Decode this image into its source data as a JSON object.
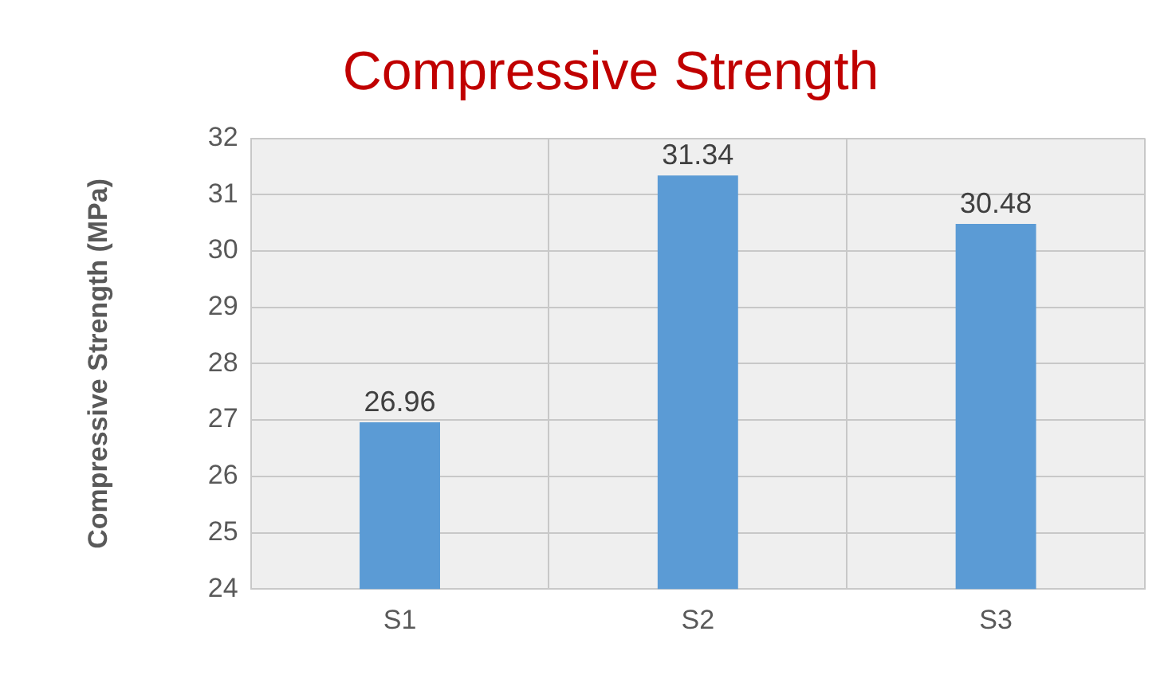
{
  "chart_data": {
    "type": "bar",
    "title": "Compressive Strength",
    "ylabel": "Compressive Strength (MPa)",
    "categories": [
      "S1",
      "S2",
      "S3"
    ],
    "values": [
      26.96,
      31.34,
      30.48
    ],
    "color": "#5b9bd5",
    "ylim": [
      24,
      32
    ],
    "yticks": [
      24,
      25,
      26,
      27,
      28,
      29,
      30,
      31,
      32
    ],
    "grid": true,
    "data_labels": true
  }
}
